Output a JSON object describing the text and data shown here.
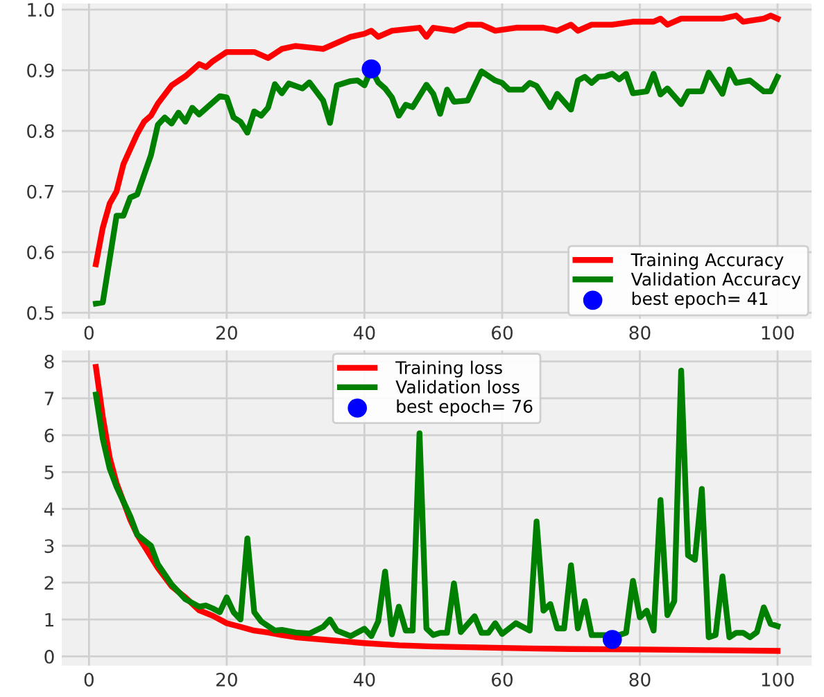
{
  "chart_data": [
    {
      "type": "line",
      "xlim": [
        -3.95,
        104.95
      ],
      "ylim": [
        0.49,
        1.01
      ],
      "xticks": [
        0,
        20,
        40,
        60,
        80,
        100
      ],
      "yticks": [
        {
          "value": 0.5,
          "label": "0.5"
        },
        {
          "value": 0.6,
          "label": "0.6"
        },
        {
          "value": 0.7,
          "label": "0.7"
        },
        {
          "value": 0.8,
          "label": "0.8"
        },
        {
          "value": 0.9,
          "label": "0.9"
        },
        {
          "value": 1.0,
          "label": "1.0"
        }
      ],
      "grid": true,
      "legend": "bottom right",
      "series": [
        {
          "name": "Training Accuracy",
          "color": "#ff0000",
          "x": [
            1,
            2,
            3,
            4,
            5,
            6,
            7,
            8,
            9,
            10,
            12,
            14,
            16,
            17,
            18,
            20,
            24,
            26,
            28,
            30,
            34,
            36,
            38,
            40,
            41,
            42,
            44,
            48,
            49,
            50,
            53,
            55,
            57,
            59,
            62,
            66,
            68,
            70,
            71,
            73,
            76,
            79,
            82,
            83,
            84,
            86,
            90,
            92,
            94,
            95,
            98,
            99,
            100
          ],
          "values": [
            0.58,
            0.64,
            0.68,
            0.7,
            0.745,
            0.77,
            0.795,
            0.815,
            0.825,
            0.845,
            0.875,
            0.89,
            0.91,
            0.905,
            0.915,
            0.93,
            0.93,
            0.92,
            0.935,
            0.94,
            0.935,
            0.945,
            0.955,
            0.96,
            0.965,
            0.955,
            0.965,
            0.97,
            0.955,
            0.97,
            0.965,
            0.975,
            0.975,
            0.965,
            0.97,
            0.97,
            0.965,
            0.975,
            0.965,
            0.975,
            0.975,
            0.98,
            0.98,
            0.985,
            0.975,
            0.985,
            0.985,
            0.985,
            0.99,
            0.98,
            0.985,
            0.99,
            0.985
          ]
        },
        {
          "name": "Validation Accuracy",
          "color": "#008000",
          "x": [
            1,
            2,
            4,
            5,
            6,
            7,
            9,
            10,
            11,
            12,
            13,
            14,
            15,
            16,
            19,
            20,
            21,
            22,
            23,
            24,
            25,
            26,
            27,
            28,
            29,
            31,
            32,
            34,
            35,
            36,
            38,
            39,
            40,
            41,
            42,
            43,
            44,
            45,
            46,
            47,
            49,
            50,
            51,
            52,
            53,
            55,
            57,
            59,
            60,
            61,
            63,
            64,
            65,
            67,
            68,
            70,
            71,
            72,
            73,
            74,
            75,
            76,
            77,
            78,
            79,
            81,
            82,
            83,
            84,
            86,
            87,
            89,
            90,
            92,
            93,
            94,
            96,
            98,
            99,
            100
          ],
          "values": [
            0.515,
            0.517,
            0.66,
            0.66,
            0.69,
            0.695,
            0.76,
            0.81,
            0.822,
            0.812,
            0.83,
            0.815,
            0.838,
            0.827,
            0.857,
            0.855,
            0.822,
            0.815,
            0.797,
            0.832,
            0.825,
            0.838,
            0.877,
            0.862,
            0.878,
            0.87,
            0.88,
            0.85,
            0.813,
            0.875,
            0.882,
            0.883,
            0.875,
            0.902,
            0.88,
            0.87,
            0.855,
            0.825,
            0.843,
            0.839,
            0.876,
            0.861,
            0.828,
            0.868,
            0.848,
            0.85,
            0.898,
            0.883,
            0.879,
            0.868,
            0.868,
            0.879,
            0.874,
            0.839,
            0.861,
            0.835,
            0.883,
            0.889,
            0.879,
            0.889,
            0.89,
            0.894,
            0.885,
            0.894,
            0.862,
            0.865,
            0.894,
            0.86,
            0.87,
            0.844,
            0.865,
            0.865,
            0.896,
            0.861,
            0.901,
            0.879,
            0.883,
            0.865,
            0.865,
            0.889
          ]
        },
        {
          "name": "best epoch= 41",
          "type": "scatter",
          "color": "#0000ff",
          "marker": "circle",
          "x": [
            41
          ],
          "values": [
            0.902
          ]
        }
      ]
    },
    {
      "type": "line",
      "xlim": [
        -3.95,
        104.95
      ],
      "ylim": [
        -0.25,
        8.3
      ],
      "xticks": [
        0,
        20,
        40,
        60,
        80,
        100
      ],
      "yticks": [
        0,
        1,
        2,
        3,
        4,
        5,
        6,
        7,
        8
      ],
      "grid": true,
      "legend": "top",
      "series": [
        {
          "name": "Training loss",
          "color": "#ff0000",
          "x": [
            1,
            2,
            3,
            4,
            5,
            6,
            7,
            8,
            9,
            10,
            12,
            14,
            16,
            18,
            20,
            22,
            24,
            26,
            28,
            30,
            35,
            40,
            45,
            50,
            60,
            70,
            80,
            90,
            100
          ],
          "values": [
            7.85,
            6.5,
            5.4,
            4.7,
            4.2,
            3.7,
            3.3,
            3.0,
            2.7,
            2.4,
            1.9,
            1.6,
            1.25,
            1.1,
            0.9,
            0.8,
            0.7,
            0.65,
            0.58,
            0.52,
            0.44,
            0.36,
            0.3,
            0.27,
            0.23,
            0.2,
            0.19,
            0.17,
            0.15
          ]
        },
        {
          "name": "Validation loss",
          "color": "#008000",
          "x": [
            1,
            2,
            3,
            4,
            5,
            6,
            7,
            8,
            9,
            10,
            12,
            14,
            16,
            17,
            18,
            19,
            20,
            21,
            22,
            23,
            24,
            25,
            27,
            28,
            30,
            32,
            34,
            35,
            36,
            38,
            40,
            41,
            42,
            43,
            44,
            45,
            46,
            47,
            48,
            49,
            50,
            51,
            52,
            53,
            54,
            56,
            57,
            58,
            59,
            60,
            62,
            64,
            65,
            66,
            67,
            68,
            69,
            70,
            71,
            72,
            73,
            75,
            76,
            77,
            78,
            79,
            80,
            81,
            82,
            83,
            84,
            85,
            86,
            87,
            88,
            89,
            90,
            91,
            92,
            93,
            94,
            95,
            96,
            97,
            98,
            99,
            100
          ],
          "values": [
            7.1,
            5.9,
            5.1,
            4.6,
            4.2,
            3.8,
            3.3,
            3.15,
            3.0,
            2.5,
            1.95,
            1.55,
            1.35,
            1.38,
            1.3,
            1.2,
            1.6,
            1.2,
            1.0,
            3.2,
            1.2,
            0.95,
            0.7,
            0.72,
            0.65,
            0.62,
            0.8,
            1.0,
            0.7,
            0.55,
            0.75,
            0.55,
            0.95,
            2.3,
            0.6,
            1.35,
            0.7,
            0.7,
            6.05,
            0.76,
            0.58,
            0.64,
            0.64,
            1.98,
            0.66,
            1.09,
            0.64,
            0.64,
            0.9,
            0.61,
            0.9,
            0.7,
            3.66,
            1.24,
            1.42,
            0.76,
            0.76,
            2.47,
            0.76,
            1.5,
            0.58,
            0.58,
            0.46,
            0.58,
            0.64,
            2.05,
            1.06,
            1.24,
            0.7,
            4.24,
            1.12,
            1.5,
            7.75,
            2.74,
            2.62,
            4.54,
            0.52,
            0.58,
            2.17,
            0.52,
            0.64,
            0.64,
            0.52,
            0.66,
            1.33,
            0.88,
            0.82
          ]
        },
        {
          "name": "best epoch= 76",
          "type": "scatter",
          "color": "#0000ff",
          "marker": "circle",
          "x": [
            76
          ],
          "values": [
            0.46
          ]
        }
      ]
    }
  ]
}
